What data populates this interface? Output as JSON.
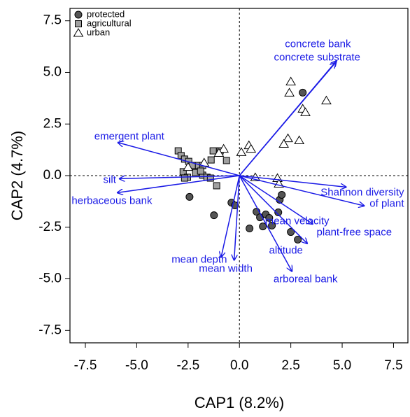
{
  "chart_data": {
    "type": "scatter",
    "xlabel": "CAP1 (8.2%)",
    "ylabel": "CAP2 (4.7%)",
    "xlim": [
      -8.25,
      8.2
    ],
    "ylim": [
      -8.1,
      8.1
    ],
    "xticks": [
      {
        "value": -7.5,
        "label": "-7.5"
      },
      {
        "value": -5,
        "label": "-5.0"
      },
      {
        "value": -2.5,
        "label": "-2.5"
      },
      {
        "value": 0,
        "label": "0.0"
      },
      {
        "value": 2.5,
        "label": "2.5"
      },
      {
        "value": 5,
        "label": "5.0"
      },
      {
        "value": 7.5,
        "label": "7.5"
      }
    ],
    "yticks": [
      {
        "value": -7.5,
        "label": "-7.5"
      },
      {
        "value": -5,
        "label": "-5.0"
      },
      {
        "value": -2.5,
        "label": "-2.5"
      },
      {
        "value": 0,
        "label": "0.0"
      },
      {
        "value": 2.5,
        "label": "2.5"
      },
      {
        "value": 5,
        "label": "5.0"
      },
      {
        "value": 7.5,
        "label": "7.5"
      }
    ],
    "legend": "upper left",
    "series": [
      {
        "name": "protected",
        "marker": "circle",
        "color": "#555555",
        "x": [
          3.08,
          -2.43,
          -1.24,
          -0.39,
          -0.22,
          0.83,
          1.0,
          1.28,
          1.45,
          0.49,
          1.14,
          1.58,
          1.89,
          1.96,
          2.06,
          2.5,
          2.84
        ],
        "y": [
          4.02,
          -1.03,
          -1.92,
          -1.31,
          -1.44,
          -1.75,
          -2.02,
          -1.88,
          -2.05,
          -2.56,
          -2.46,
          -2.42,
          -1.78,
          -1.17,
          -0.93,
          -2.73,
          -3.1
        ]
      },
      {
        "name": "agricultural",
        "marker": "square",
        "color": "#a0a0a0",
        "x": [
          -2.98,
          -2.84,
          -2.67,
          -2.47,
          -2.3,
          -1.99,
          -1.79,
          -1.28,
          -0.94,
          -0.63,
          -1.38,
          -2.74,
          -2.53,
          -2.13,
          -1.79,
          -1.58,
          -1.41,
          -1.11,
          -2.67,
          -1.89
        ],
        "y": [
          1.2,
          0.97,
          0.8,
          0.69,
          0.49,
          0.49,
          0.49,
          1.2,
          1.2,
          0.73,
          0.76,
          0.19,
          -0.08,
          0.15,
          0.02,
          -0.08,
          -0.12,
          -0.49,
          -0.12,
          0.22
        ]
      },
      {
        "name": "urban",
        "marker": "triangle",
        "color": "#ffffff",
        "x": [
          2.5,
          2.43,
          3.08,
          3.21,
          4.23,
          2.91,
          2.36,
          2.16,
          0.46,
          0.56,
          0.09,
          -0.77,
          -1.0,
          -1.72,
          -2.5,
          0.77,
          1.85,
          1.92
        ],
        "y": [
          4.56,
          4.02,
          3.24,
          3.07,
          3.64,
          1.71,
          1.81,
          1.54,
          1.47,
          1.3,
          1.14,
          1.3,
          1.1,
          0.63,
          0.42,
          -0.08,
          -0.12,
          -0.39
        ]
      }
    ],
    "arrow_color": "#1a1ae6",
    "arrows": [
      {
        "label": [
          "concrete bank"
        ],
        "x": 4.74,
        "y": 5.58
      },
      {
        "label": [
          "concrete substrate"
        ],
        "x": 4.7,
        "y": 5.5
      },
      {
        "label": [
          "emergent plant"
        ],
        "x": -5.94,
        "y": 1.61
      },
      {
        "label": [
          "silt"
        ],
        "x": -5.87,
        "y": -0.15
      },
      {
        "label": [
          "herbaceous bank"
        ],
        "x": -5.97,
        "y": -0.83
      },
      {
        "label": [
          "Shannon diversity",
          "of plant"
        ],
        "x": 5.22,
        "y": -0.56
      },
      {
        "label": [
          "mean velocity"
        ],
        "x": 3.59,
        "y": -2.36
      },
      {
        "label": [
          "plant-free space"
        ],
        "x": 6.1,
        "y": -1.47
      },
      {
        "label": [
          "altitude"
        ],
        "x": 3.32,
        "y": -3.31
      },
      {
        "label": [
          "arboreal bank"
        ],
        "x": 2.57,
        "y": -4.66
      },
      {
        "label": [
          "mean depth"
        ],
        "x": -0.9,
        "y": -3.98
      },
      {
        "label": [
          "mean width"
        ],
        "x": -0.26,
        "y": -4.12
      }
    ]
  }
}
